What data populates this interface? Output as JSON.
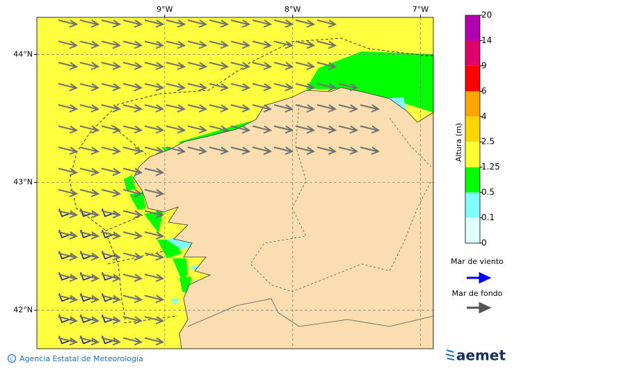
{
  "map": {
    "lon_range": [
      -10,
      -6.9
    ],
    "lat_range": [
      41.7,
      44.29
    ],
    "lon_ticks": [
      {
        "value": -9,
        "label": "9°W"
      },
      {
        "value": -8,
        "label": "8°W"
      },
      {
        "value": -7,
        "label": "7°W"
      }
    ],
    "lat_ticks": [
      {
        "value": 44,
        "label": "44°N"
      },
      {
        "value": 43,
        "label": "43°N"
      },
      {
        "value": 42,
        "label": "42°N"
      }
    ]
  },
  "colorbar": {
    "title": "Altura (m)",
    "ticks": [
      0,
      0.1,
      0.5,
      1.25,
      2.5,
      4,
      6,
      9,
      14,
      20
    ],
    "colors": [
      "#e0ffff",
      "#80ffff",
      "#00ff00",
      "#ffff33",
      "#ffd700",
      "#ffa500",
      "#ff0000",
      "#e0006e",
      "#b000b0"
    ]
  },
  "legend": {
    "wind_sea": "Mar de viento",
    "swell": "Mar de fondo"
  },
  "footer": {
    "credit": "Agencia Estatal de Meteorología",
    "logo": "aemet"
  }
}
